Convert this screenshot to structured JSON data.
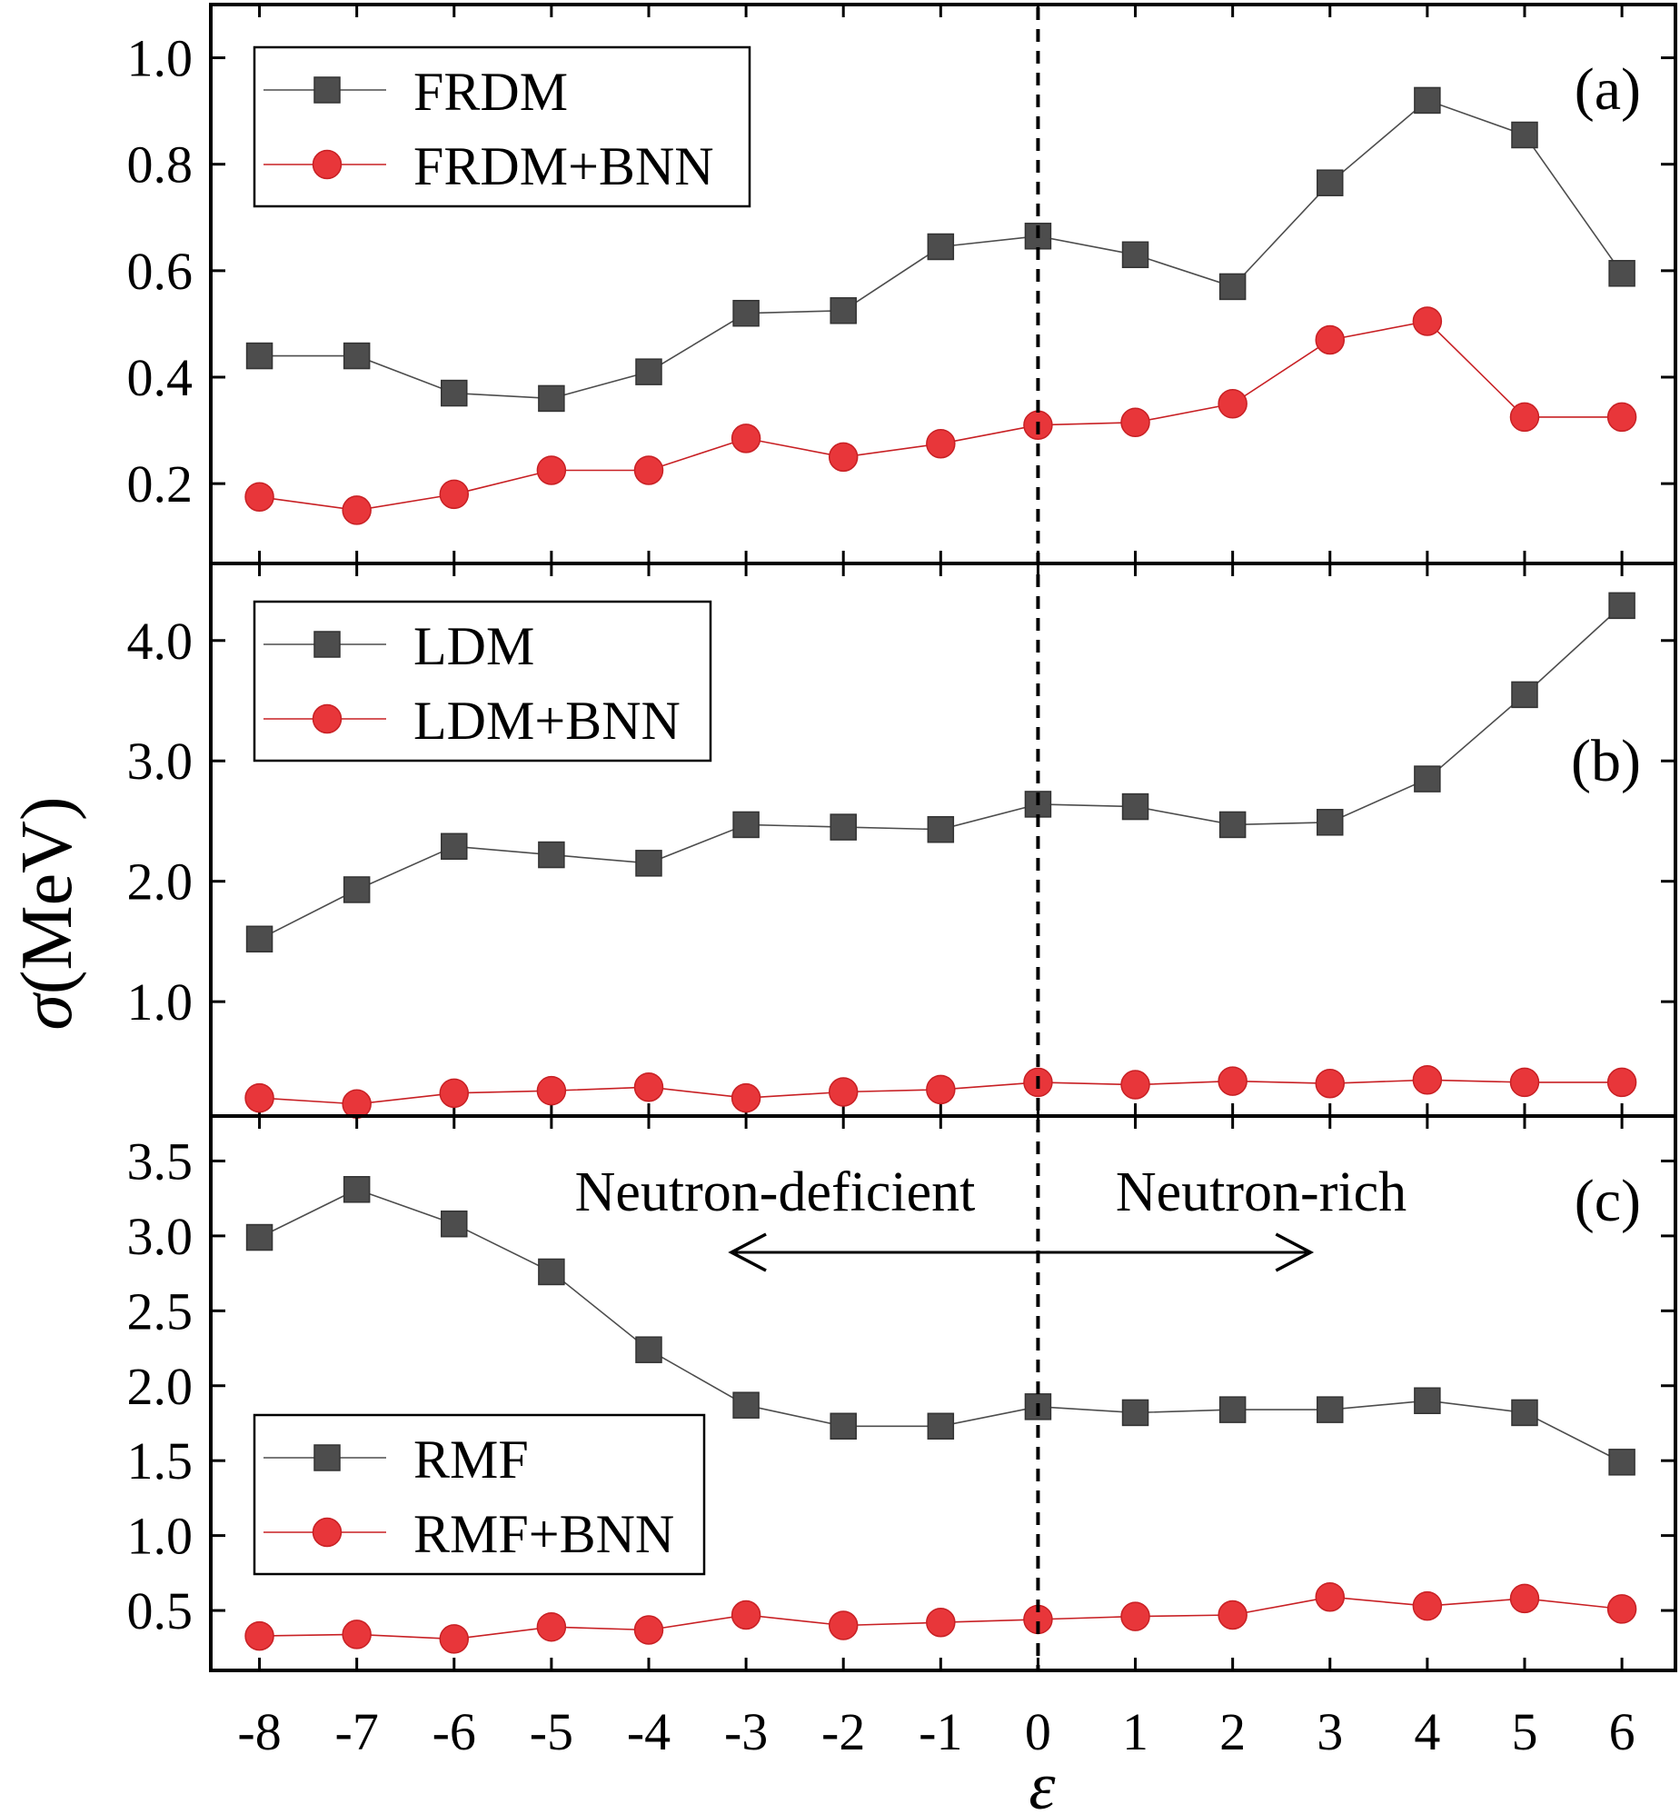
{
  "figure": {
    "ylabel_symbol": "σ",
    "ylabel_unit": "(MeV)",
    "xlabel": "ε",
    "x_ticks": [
      -8,
      -7,
      -6,
      -5,
      -4,
      -3,
      -2,
      -1,
      0,
      1,
      2,
      3,
      4,
      5,
      6
    ]
  },
  "colors": {
    "model": "#4d4d4d",
    "bnn": "#e8363a",
    "bnn_edge": "#c82024",
    "frame": "#000000"
  },
  "chart_data": [
    {
      "type": "line",
      "panel_label": "(a)",
      "x": [
        -8,
        -7,
        -6,
        -5,
        -4,
        -3,
        -2,
        -1,
        0,
        1,
        2,
        3,
        4,
        5,
        6
      ],
      "ylim": [
        0.05,
        1.1
      ],
      "yticks": [
        0.2,
        0.4,
        0.6,
        0.8,
        1.0
      ],
      "ytick_labels": [
        "0.2",
        "0.4",
        "0.6",
        "0.8",
        "1.0"
      ],
      "legend_position": "top-left",
      "series": [
        {
          "name": "FRDM",
          "marker": "square",
          "values": [
            0.44,
            0.44,
            0.37,
            0.36,
            0.41,
            0.52,
            0.525,
            0.645,
            0.665,
            0.63,
            0.57,
            0.765,
            0.92,
            0.855,
            0.595
          ]
        },
        {
          "name": "FRDM+BNN",
          "marker": "circle",
          "values": [
            0.175,
            0.15,
            0.18,
            0.225,
            0.225,
            0.285,
            0.25,
            0.275,
            0.31,
            0.315,
            0.35,
            0.47,
            0.505,
            0.325,
            0.325
          ]
        }
      ]
    },
    {
      "type": "line",
      "panel_label": "(b)",
      "x": [
        -8,
        -7,
        -6,
        -5,
        -4,
        -3,
        -2,
        -1,
        0,
        1,
        2,
        3,
        4,
        5,
        6
      ],
      "ylim": [
        0.05,
        4.64
      ],
      "yticks": [
        1.0,
        2.0,
        3.0,
        4.0
      ],
      "ytick_labels": [
        "1.0",
        "2.0",
        "3.0",
        "4.0"
      ],
      "legend_position": "top-left",
      "series": [
        {
          "name": "LDM",
          "marker": "square",
          "values": [
            1.52,
            1.93,
            2.29,
            2.22,
            2.15,
            2.47,
            2.45,
            2.43,
            2.64,
            2.62,
            2.47,
            2.49,
            2.85,
            3.55,
            4.29
          ]
        },
        {
          "name": "LDM+BNN",
          "marker": "circle",
          "values": [
            0.2,
            0.15,
            0.24,
            0.26,
            0.29,
            0.2,
            0.25,
            0.27,
            0.33,
            0.31,
            0.34,
            0.32,
            0.35,
            0.33,
            0.33
          ]
        }
      ]
    },
    {
      "type": "line",
      "panel_label": "(c)",
      "x": [
        -8,
        -7,
        -6,
        -5,
        -4,
        -3,
        -2,
        -1,
        0,
        1,
        2,
        3,
        4,
        5,
        6
      ],
      "ylim": [
        0.1,
        3.8
      ],
      "yticks": [
        0.5,
        1.0,
        1.5,
        2.0,
        2.5,
        3.0,
        3.5
      ],
      "ytick_labels": [
        "0.5",
        "1.0",
        "1.5",
        "2.0",
        "2.5",
        "3.0",
        "3.5"
      ],
      "legend_position": "bottom-left",
      "annotations": {
        "left_text": "Neutron-deficient",
        "right_text": "Neutron-rich"
      },
      "series": [
        {
          "name": "RMF",
          "marker": "square",
          "values": [
            2.99,
            3.31,
            3.08,
            2.76,
            2.24,
            1.87,
            1.73,
            1.73,
            1.86,
            1.82,
            1.84,
            1.84,
            1.9,
            1.82,
            1.49
          ]
        },
        {
          "name": "RMF+BNN",
          "marker": "circle",
          "values": [
            0.33,
            0.34,
            0.31,
            0.39,
            0.37,
            0.47,
            0.4,
            0.42,
            0.44,
            0.46,
            0.47,
            0.59,
            0.53,
            0.58,
            0.51
          ]
        }
      ]
    }
  ]
}
